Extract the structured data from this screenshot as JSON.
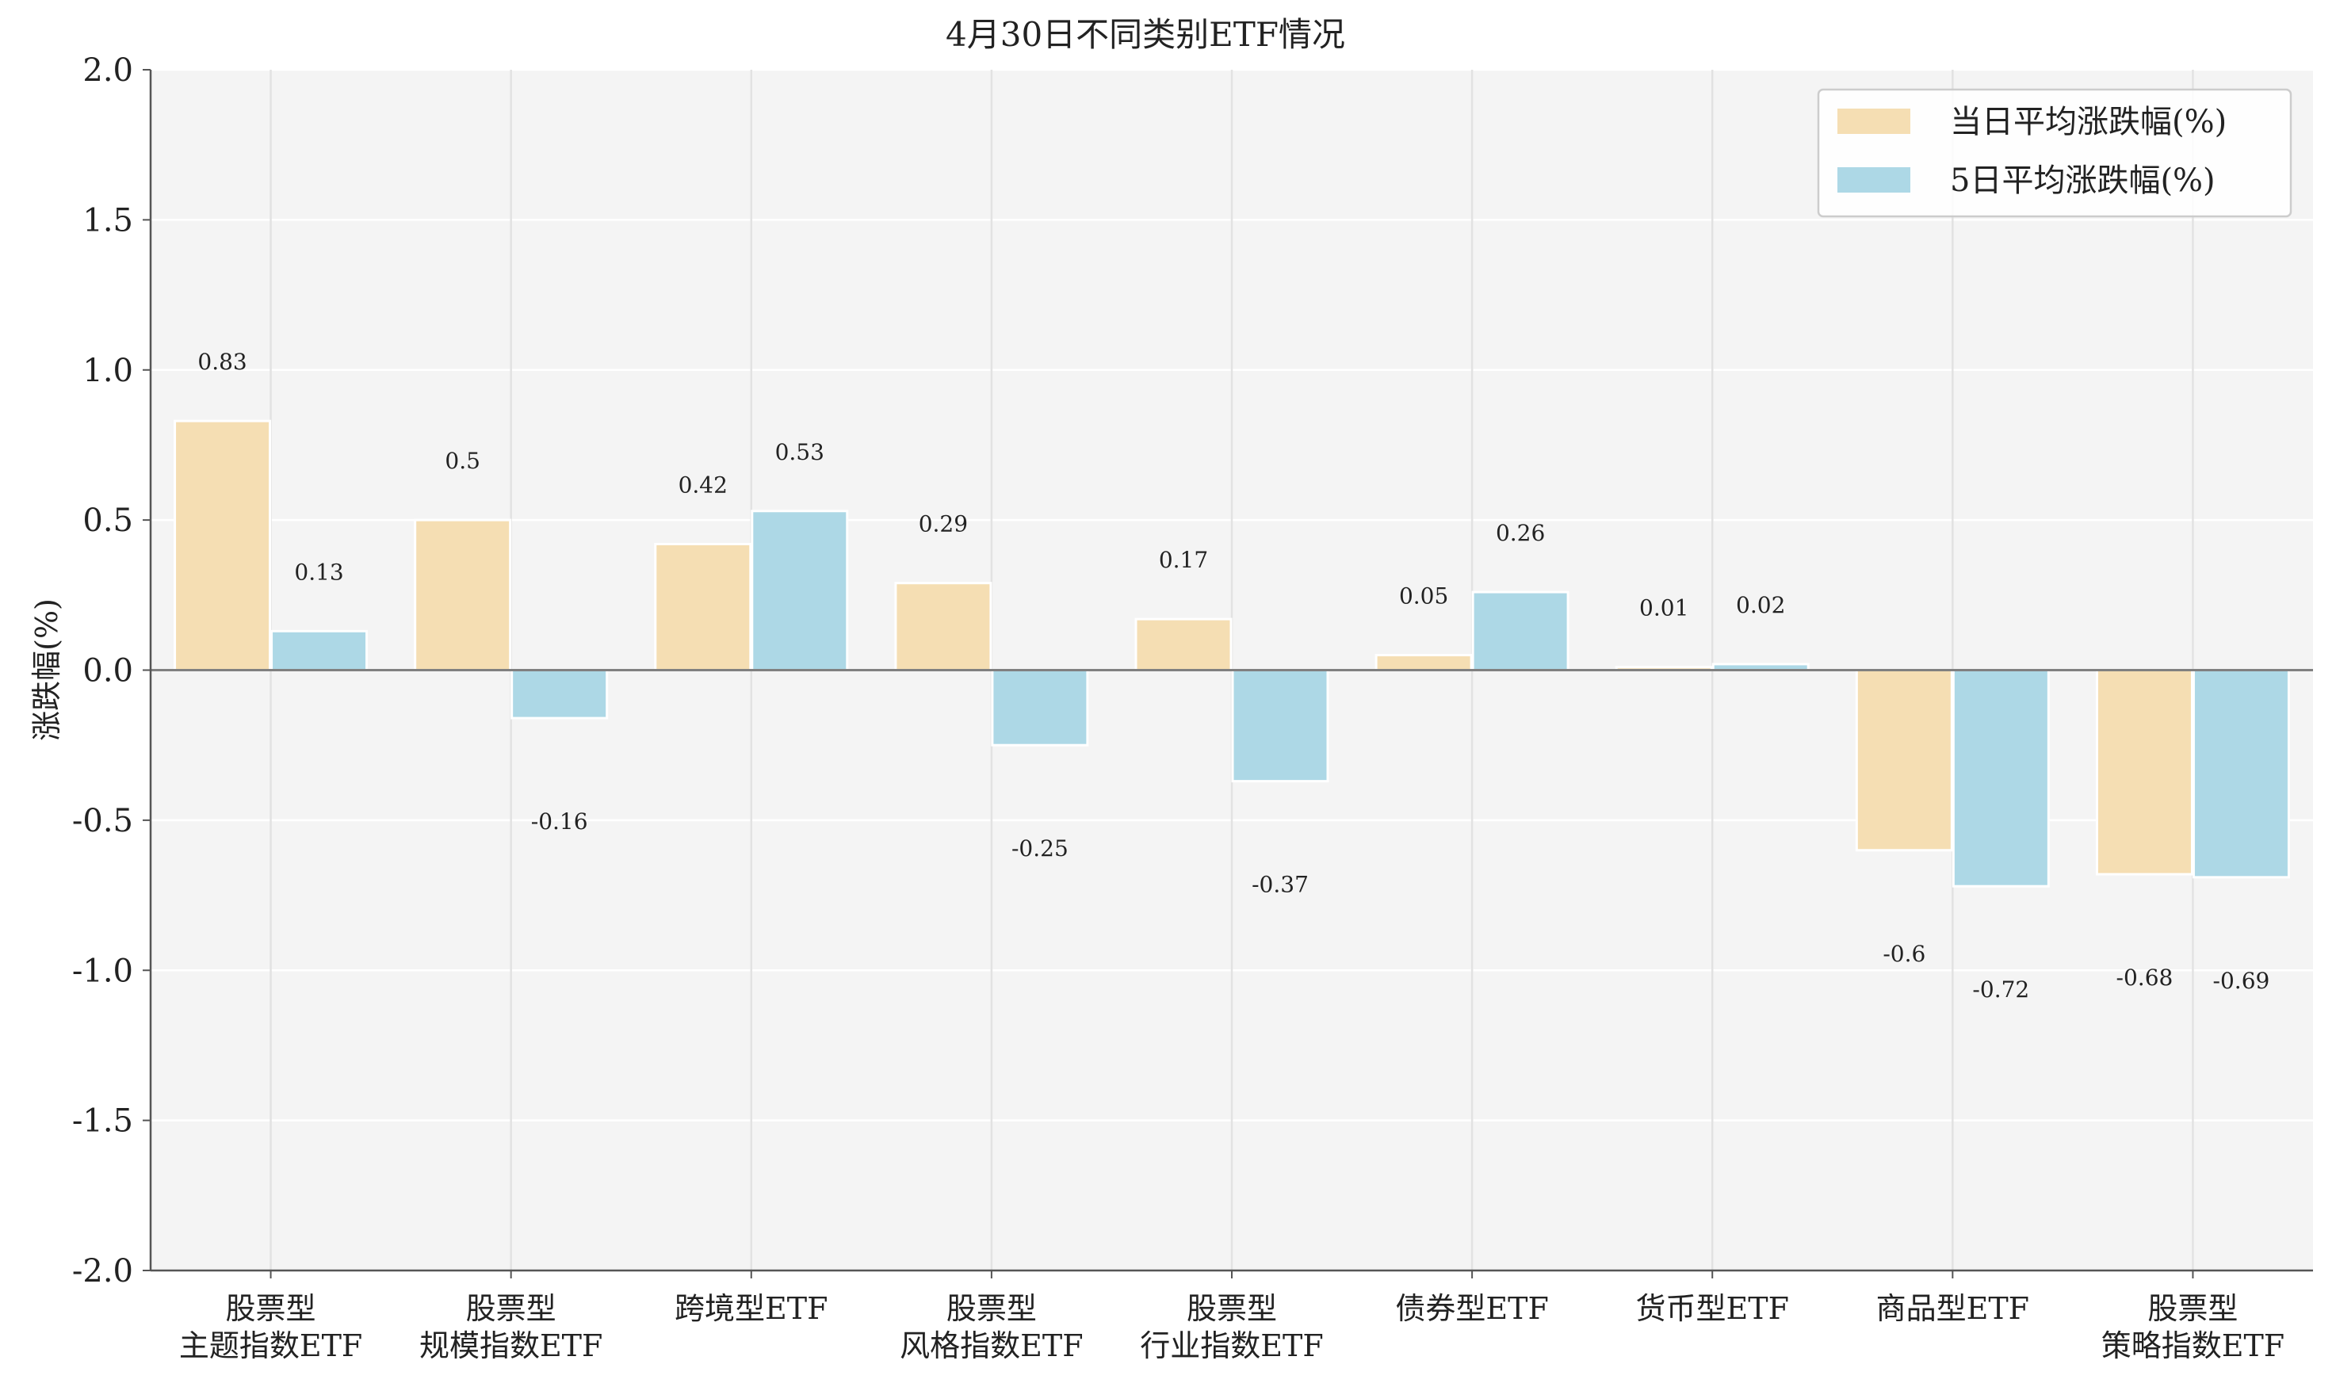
{
  "chart_data": {
    "type": "bar",
    "title": "4月30日不同类别ETF情况",
    "xlabel": "",
    "ylabel": "涨跌幅(%)",
    "ylim": [
      -2.0,
      2.0
    ],
    "yticks": [
      2.0,
      1.5,
      1.0,
      0.5,
      0.0,
      -0.5,
      -1.0,
      -1.5,
      -2.0
    ],
    "ytick_labels": [
      "2.0",
      "1.5",
      "1.0",
      "0.5",
      "0.0",
      "-0.5",
      "-1.0",
      "-1.5",
      "-2.0"
    ],
    "grid": true,
    "legend_position": "top-right",
    "categories": [
      [
        "股票型",
        "主题指数ETF"
      ],
      [
        "股票型",
        "规模指数ETF"
      ],
      [
        "跨境型ETF"
      ],
      [
        "股票型",
        "风格指数ETF"
      ],
      [
        "股票型",
        "行业指数ETF"
      ],
      [
        "债券型ETF"
      ],
      [
        "货币型ETF"
      ],
      [
        "商品型ETF"
      ],
      [
        "股票型",
        "策略指数ETF"
      ]
    ],
    "series": [
      {
        "name": "当日平均涨跌幅(%)",
        "color": "#F5DEB3",
        "values": [
          0.83,
          0.5,
          0.42,
          0.29,
          0.17,
          0.05,
          0.01,
          -0.6,
          -0.68
        ],
        "labels": [
          "0.83",
          "0.5",
          "0.42",
          "0.29",
          "0.17",
          "0.05",
          "0.01",
          "-0.6",
          "-0.68"
        ]
      },
      {
        "name": "5日平均涨跌幅(%)",
        "color": "#ADD8E6",
        "values": [
          0.13,
          -0.16,
          0.53,
          -0.25,
          -0.37,
          0.26,
          0.02,
          -0.72,
          -0.69
        ],
        "labels": [
          "0.13",
          "-0.16",
          "0.53",
          "-0.25",
          "-0.37",
          "0.26",
          "0.02",
          "-0.72",
          "-0.69"
        ]
      }
    ]
  }
}
